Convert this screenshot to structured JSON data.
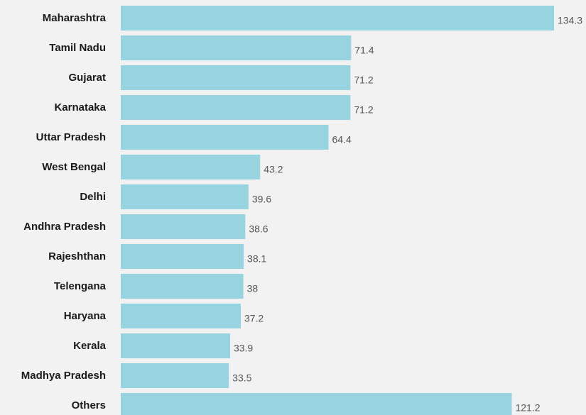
{
  "colors": {
    "bar": "#98d3e0",
    "background": "#f2f2f2",
    "category_text": "#1a1a1a",
    "value_text": "#555555"
  },
  "chart_data": {
    "type": "bar",
    "orientation": "horizontal",
    "title": "",
    "xlabel": "",
    "ylabel": "",
    "grid": false,
    "xlim": [
      0,
      134.3
    ],
    "categories": [
      "Maharashtra",
      "Tamil Nadu",
      "Gujarat",
      "Karnataka",
      "Uttar Pradesh",
      "West Bengal",
      "Delhi",
      "Andhra Pradesh",
      "Rajeshthan",
      "Telengana",
      "Haryana",
      "Kerala",
      "Madhya Pradesh",
      "Others"
    ],
    "values": [
      134.3,
      71.4,
      71.2,
      71.2,
      64.4,
      43.2,
      39.6,
      38.6,
      38.1,
      38,
      37.2,
      33.9,
      33.5,
      121.2
    ],
    "value_labels": [
      "134.3",
      "71.4",
      "71.2",
      "71.2",
      "64.4",
      "43.2",
      "39.6",
      "38.6",
      "38.1",
      "38",
      "37.2",
      "33.9",
      "33.5",
      "121.2"
    ]
  }
}
